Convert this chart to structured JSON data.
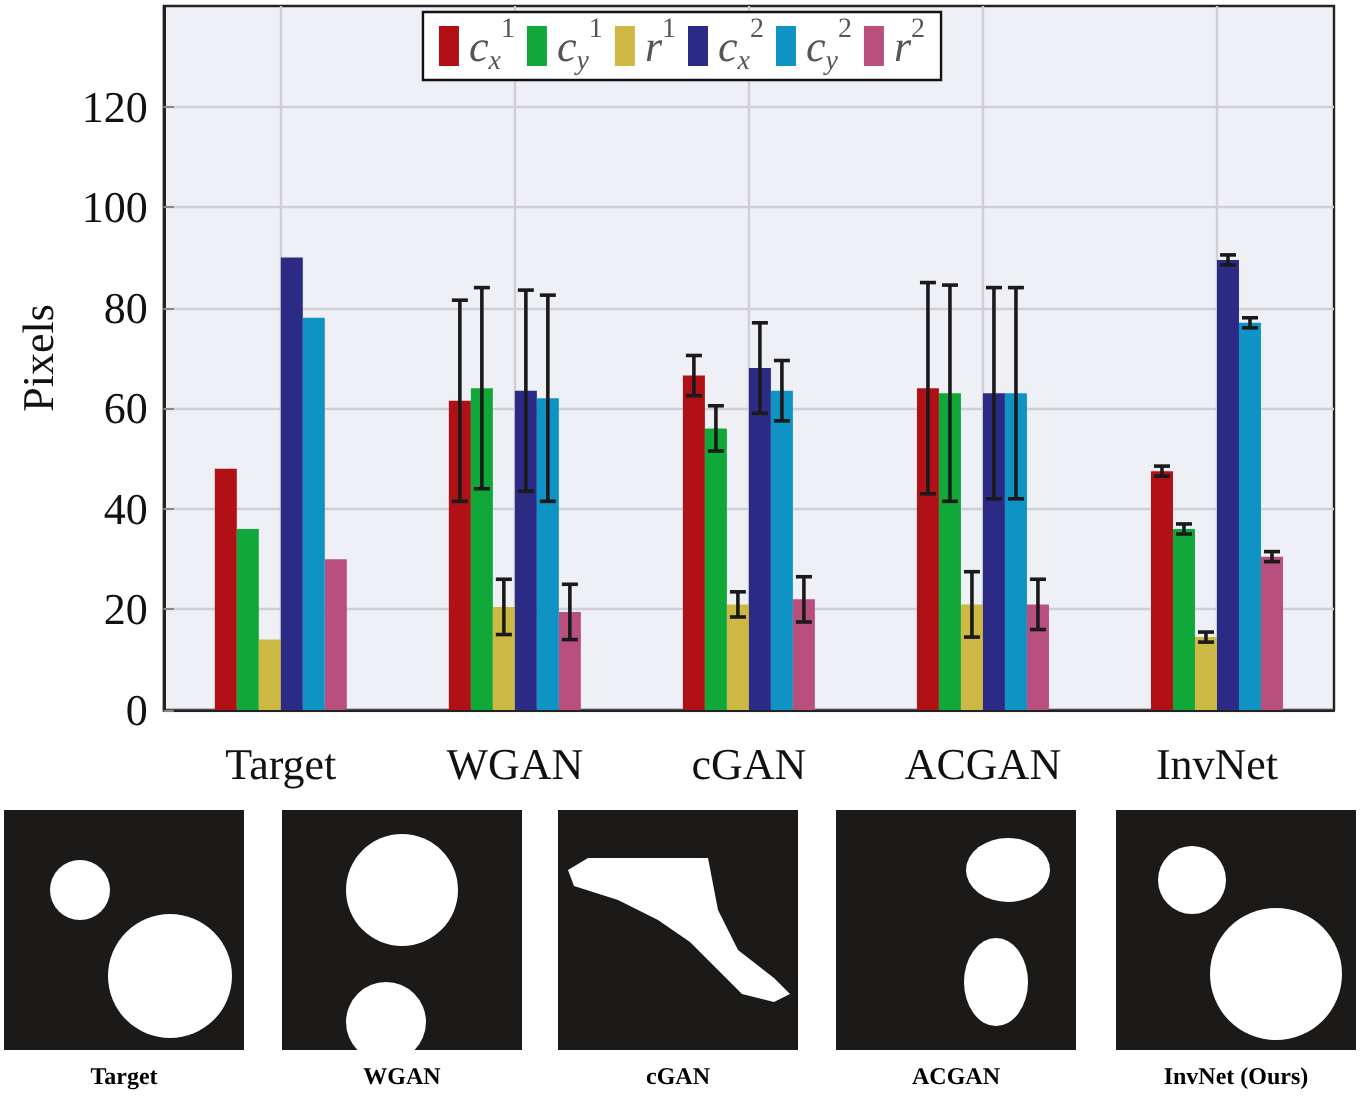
{
  "chart_data": {
    "type": "bar",
    "ylabel": "Pixels",
    "categories": [
      "Target",
      "WGAN",
      "cGAN",
      "ACGAN",
      "InvNet"
    ],
    "series": [
      {
        "name": "c$_{x}$$^{1}$",
        "color": "#b01016",
        "values": [
          48,
          61.5,
          66.5,
          64,
          47.5
        ],
        "errors": [
          null,
          20,
          4,
          21,
          1
        ]
      },
      {
        "name": "c$_{y}$$^{1}$",
        "color": "#10a838",
        "values": [
          36,
          64,
          56,
          63,
          36
        ],
        "errors": [
          null,
          20,
          4.5,
          21.5,
          1
        ]
      },
      {
        "name": "r$^{1}$",
        "color": "#cdb843",
        "values": [
          14,
          20.5,
          21,
          21,
          14.5
        ],
        "errors": [
          null,
          5.5,
          2.5,
          6.5,
          1
        ]
      },
      {
        "name": "c$_{x}$$^{2}$",
        "color": "#2b2b85",
        "values": [
          90,
          63.5,
          68,
          63,
          89.5
        ],
        "errors": [
          null,
          20,
          9,
          21,
          1
        ]
      },
      {
        "name": "c$_{y}$$^{2}$",
        "color": "#0f92c4",
        "values": [
          78,
          62,
          63.5,
          63,
          77
        ],
        "errors": [
          null,
          20.5,
          6,
          21,
          1
        ]
      },
      {
        "name": "r$^{2}$",
        "color": "#b94f7f",
        "values": [
          30,
          19.5,
          22,
          21,
          30.5
        ],
        "errors": [
          null,
          5.5,
          4.5,
          5,
          1
        ]
      }
    ],
    "ylim": [
      0,
      140
    ],
    "yticks": [
      0,
      20,
      40,
      60,
      80,
      100,
      120
    ],
    "grid": true,
    "legend": "top",
    "annotations": [
      "Target",
      "WGAN",
      "cGAN",
      "ACGAN",
      "InvNet (Ours)"
    ]
  }
}
